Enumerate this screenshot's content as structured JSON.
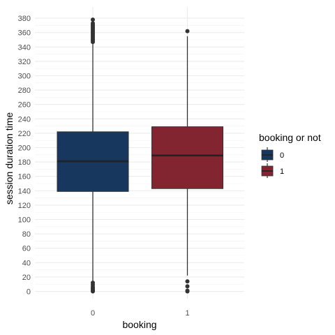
{
  "chart_data": {
    "type": "boxplot",
    "xlabel": "booking",
    "ylabel": "session duration time",
    "ylim": [
      -8,
      388
    ],
    "y_ticks": [
      0,
      20,
      40,
      60,
      80,
      100,
      120,
      140,
      160,
      180,
      200,
      220,
      240,
      260,
      280,
      300,
      320,
      340,
      360,
      380
    ],
    "categories": [
      "0",
      "1"
    ],
    "grid": true,
    "legend": {
      "title": "booking or not",
      "placement": "right",
      "entries": [
        "0",
        "1"
      ]
    },
    "series": [
      {
        "category": "0",
        "color": "#17375e",
        "min": 12,
        "q1": 139,
        "median": 181,
        "q3": 222,
        "max": 346,
        "outliers": [
          0,
          1,
          2,
          4,
          6,
          9,
          12,
          347,
          349,
          351,
          353,
          355,
          357,
          359,
          361,
          363,
          365,
          367,
          369,
          371,
          373,
          378
        ]
      },
      {
        "category": "1",
        "color": "#832431",
        "min": 22,
        "q1": 143,
        "median": 189,
        "q3": 229,
        "max": 355,
        "outliers": [
          0,
          1,
          7,
          14,
          362
        ]
      }
    ]
  }
}
